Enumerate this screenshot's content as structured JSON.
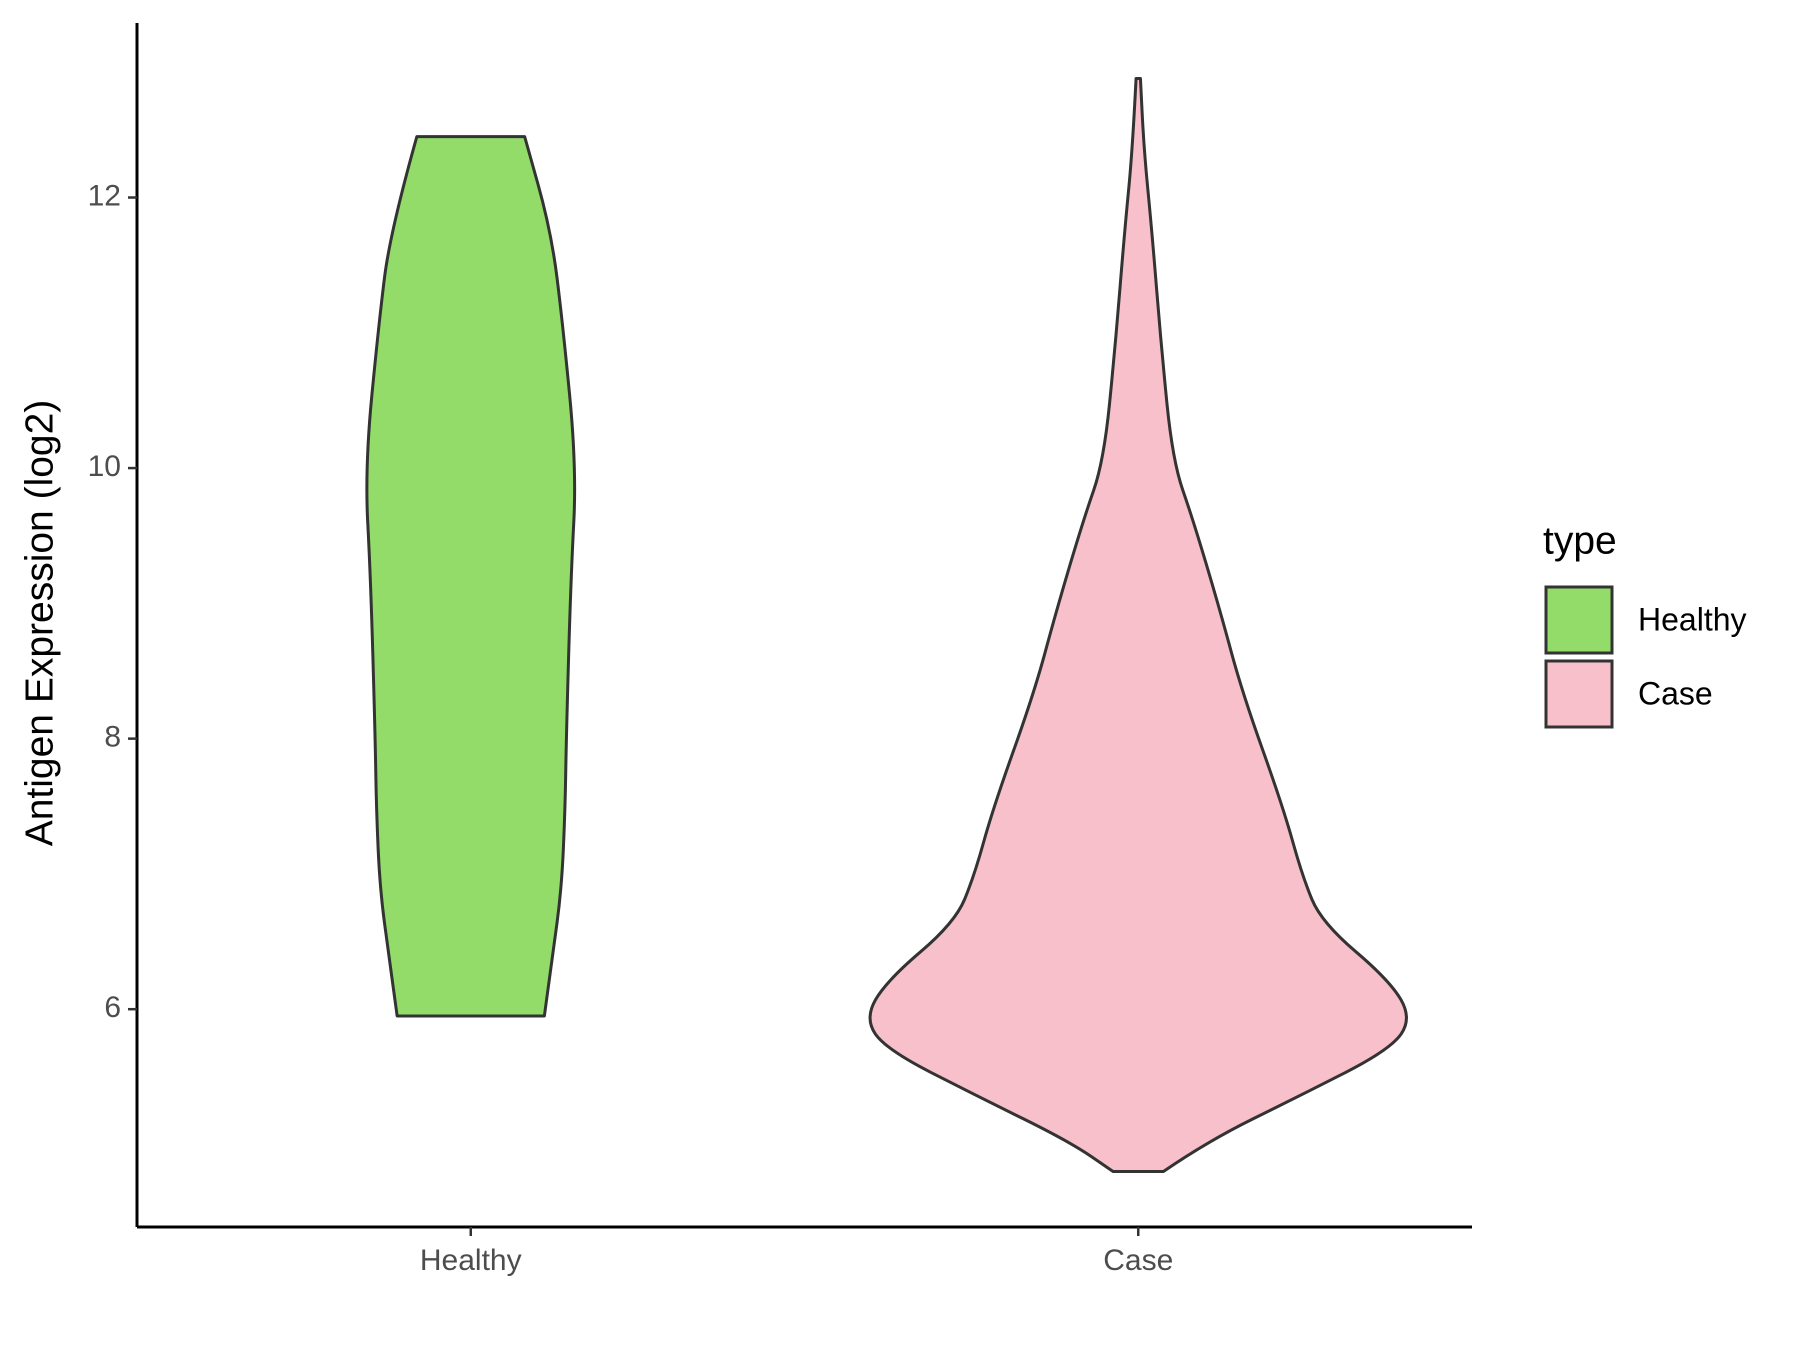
{
  "chart_data": {
    "type": "violin",
    "ylabel": "Antigen Expression (log2)",
    "categories": [
      "Healthy",
      "Case"
    ],
    "legend_title": "type",
    "legend": "right",
    "ylim": [
      4.39,
      13.29
    ],
    "yticks": [
      6,
      8,
      10,
      12
    ],
    "series": [
      {
        "name": "Healthy",
        "color": "#93dc6a",
        "y": [
          5.95,
          6.38,
          6.89,
          7.49,
          8.0,
          9.2,
          10.0,
          11.07,
          11.75,
          12.45
        ],
        "width": [
          0.269,
          0.298,
          0.332,
          0.345,
          0.349,
          0.366,
          0.387,
          0.336,
          0.294,
          0.197
        ]
      },
      {
        "name": "Case",
        "color": "#f7c0cb",
        "y": [
          4.8,
          5.02,
          5.36,
          5.7,
          5.93,
          6.21,
          6.64,
          6.98,
          7.49,
          8.34,
          8.94,
          9.62,
          10.05,
          10.9,
          11.75,
          12.35,
          12.88
        ],
        "width": [
          0.092,
          0.25,
          0.59,
          0.92,
          1.0,
          0.92,
          0.67,
          0.6,
          0.53,
          0.38,
          0.3,
          0.2,
          0.126,
          0.084,
          0.05,
          0.021,
          0.008
        ]
      }
    ]
  }
}
